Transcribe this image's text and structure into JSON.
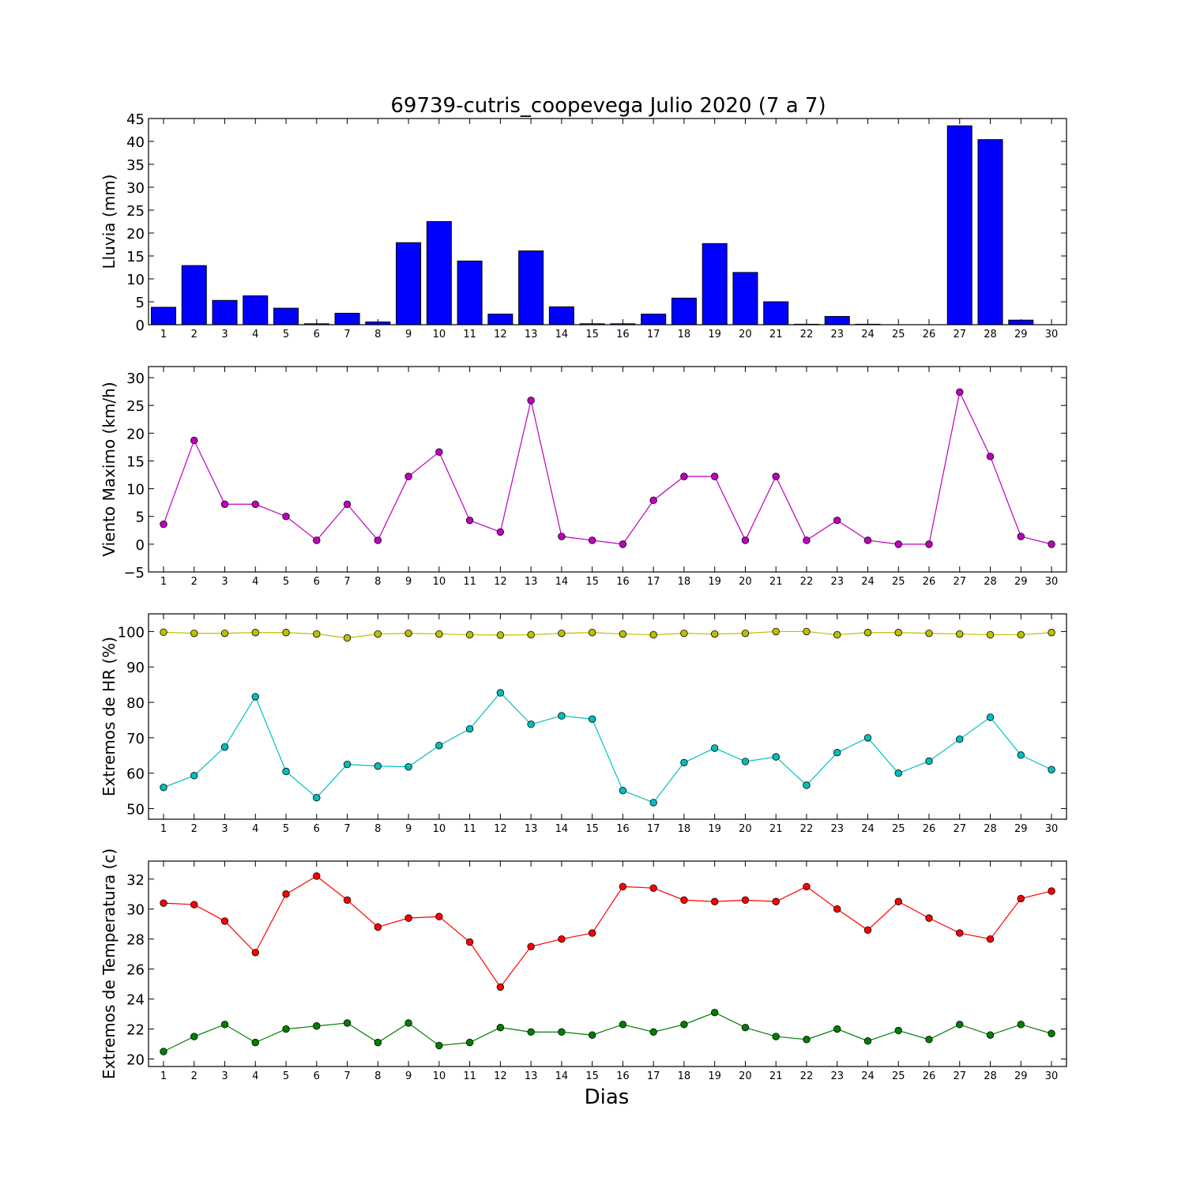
{
  "figure": {
    "title": "69739-cutris_coopevega Julio 2020  (7 a 7)",
    "xlabel": "Dias"
  },
  "chart_data": [
    {
      "type": "bar",
      "ylabel": "Lluvia (mm)",
      "ylim": [
        0,
        45
      ],
      "yticks": [
        0,
        5,
        10,
        15,
        20,
        25,
        30,
        35,
        40,
        45
      ],
      "categories": [
        "1",
        "2",
        "3",
        "4",
        "5",
        "6",
        "7",
        "8",
        "9",
        "10",
        "11",
        "12",
        "13",
        "14",
        "15",
        "16",
        "17",
        "18",
        "19",
        "20",
        "21",
        "22",
        "23",
        "24",
        "25",
        "26",
        "27",
        "28",
        "29",
        "30"
      ],
      "series": [
        {
          "color": "#0000ff",
          "values": [
            3.8,
            12.9,
            5.3,
            6.3,
            3.6,
            0.2,
            2.5,
            0.6,
            17.9,
            22.5,
            13.9,
            2.3,
            16.1,
            3.9,
            0.2,
            0.2,
            2.3,
            5.8,
            17.7,
            11.4,
            5.0,
            0.1,
            1.8,
            0.1,
            0.0,
            0.0,
            43.4,
            40.4,
            1.0,
            0.0
          ]
        }
      ]
    },
    {
      "type": "line",
      "ylabel": "Viento Maximo (km/h)",
      "ylim": [
        -5,
        32
      ],
      "yticks": [
        -5,
        0,
        5,
        10,
        15,
        20,
        25,
        30
      ],
      "categories": [
        "1",
        "2",
        "3",
        "4",
        "5",
        "6",
        "7",
        "8",
        "9",
        "10",
        "11",
        "12",
        "13",
        "14",
        "15",
        "16",
        "17",
        "18",
        "19",
        "20",
        "21",
        "22",
        "23",
        "24",
        "25",
        "26",
        "27",
        "28",
        "29",
        "30"
      ],
      "series": [
        {
          "color": "#bf00bf",
          "values": [
            3.6,
            18.7,
            7.2,
            7.2,
            5.0,
            0.7,
            7.2,
            0.7,
            12.2,
            16.6,
            4.3,
            2.2,
            25.9,
            1.4,
            0.7,
            0.0,
            7.9,
            12.2,
            12.2,
            0.7,
            12.2,
            0.7,
            4.3,
            0.7,
            0.0,
            0.0,
            27.4,
            15.8,
            1.4,
            0.0
          ]
        }
      ]
    },
    {
      "type": "line",
      "ylabel": "Extremos de HR (%)",
      "ylim": [
        47,
        105
      ],
      "yticks": [
        50,
        60,
        70,
        80,
        90,
        100
      ],
      "categories": [
        "1",
        "2",
        "3",
        "4",
        "5",
        "6",
        "7",
        "8",
        "9",
        "10",
        "11",
        "12",
        "13",
        "14",
        "15",
        "16",
        "17",
        "18",
        "19",
        "20",
        "21",
        "22",
        "23",
        "24",
        "25",
        "26",
        "27",
        "28",
        "29",
        "30"
      ],
      "series": [
        {
          "color": "#bfbf00",
          "values": [
            99.8,
            99.5,
            99.5,
            99.7,
            99.7,
            99.3,
            98.2,
            99.3,
            99.5,
            99.3,
            99.1,
            99.0,
            99.1,
            99.5,
            99.7,
            99.3,
            99.1,
            99.5,
            99.3,
            99.5,
            100.0,
            100.0,
            99.1,
            99.7,
            99.7,
            99.5,
            99.3,
            99.1,
            99.1,
            99.7
          ]
        },
        {
          "color": "#00bfbf",
          "values": [
            56.0,
            59.3,
            67.4,
            81.6,
            60.5,
            53.1,
            62.5,
            62.0,
            61.8,
            67.8,
            72.5,
            82.7,
            73.8,
            76.2,
            75.3,
            55.1,
            51.7,
            63.0,
            67.1,
            63.3,
            64.6,
            56.6,
            65.8,
            70.0,
            60.0,
            63.4,
            69.6,
            75.8,
            65.1,
            61.0
          ]
        }
      ]
    },
    {
      "type": "line",
      "ylabel": "Extremos de Temperatura (c)",
      "ylim": [
        19.5,
        33.2
      ],
      "yticks": [
        20,
        22,
        24,
        26,
        28,
        30,
        32
      ],
      "categories": [
        "1",
        "2",
        "3",
        "4",
        "5",
        "6",
        "7",
        "8",
        "9",
        "10",
        "11",
        "12",
        "13",
        "14",
        "15",
        "16",
        "17",
        "18",
        "19",
        "20",
        "21",
        "22",
        "23",
        "24",
        "25",
        "26",
        "27",
        "28",
        "29",
        "30"
      ],
      "series": [
        {
          "color": "#ff0000",
          "values": [
            30.4,
            30.3,
            29.2,
            27.1,
            31.0,
            32.2,
            30.6,
            28.8,
            29.4,
            29.5,
            27.8,
            24.8,
            27.5,
            28.0,
            28.4,
            31.5,
            31.4,
            30.6,
            30.5,
            30.6,
            30.5,
            31.5,
            30.0,
            28.6,
            30.5,
            29.4,
            28.4,
            28.0,
            30.7,
            31.2
          ]
        },
        {
          "color": "#007f00",
          "values": [
            20.5,
            21.5,
            22.3,
            21.1,
            22.0,
            22.2,
            22.4,
            21.1,
            22.4,
            20.9,
            21.1,
            22.1,
            21.8,
            21.8,
            21.6,
            22.3,
            21.8,
            22.3,
            23.1,
            22.1,
            21.5,
            21.3,
            22.0,
            21.2,
            21.9,
            21.3,
            22.3,
            21.6,
            22.3,
            21.7
          ]
        }
      ]
    }
  ]
}
